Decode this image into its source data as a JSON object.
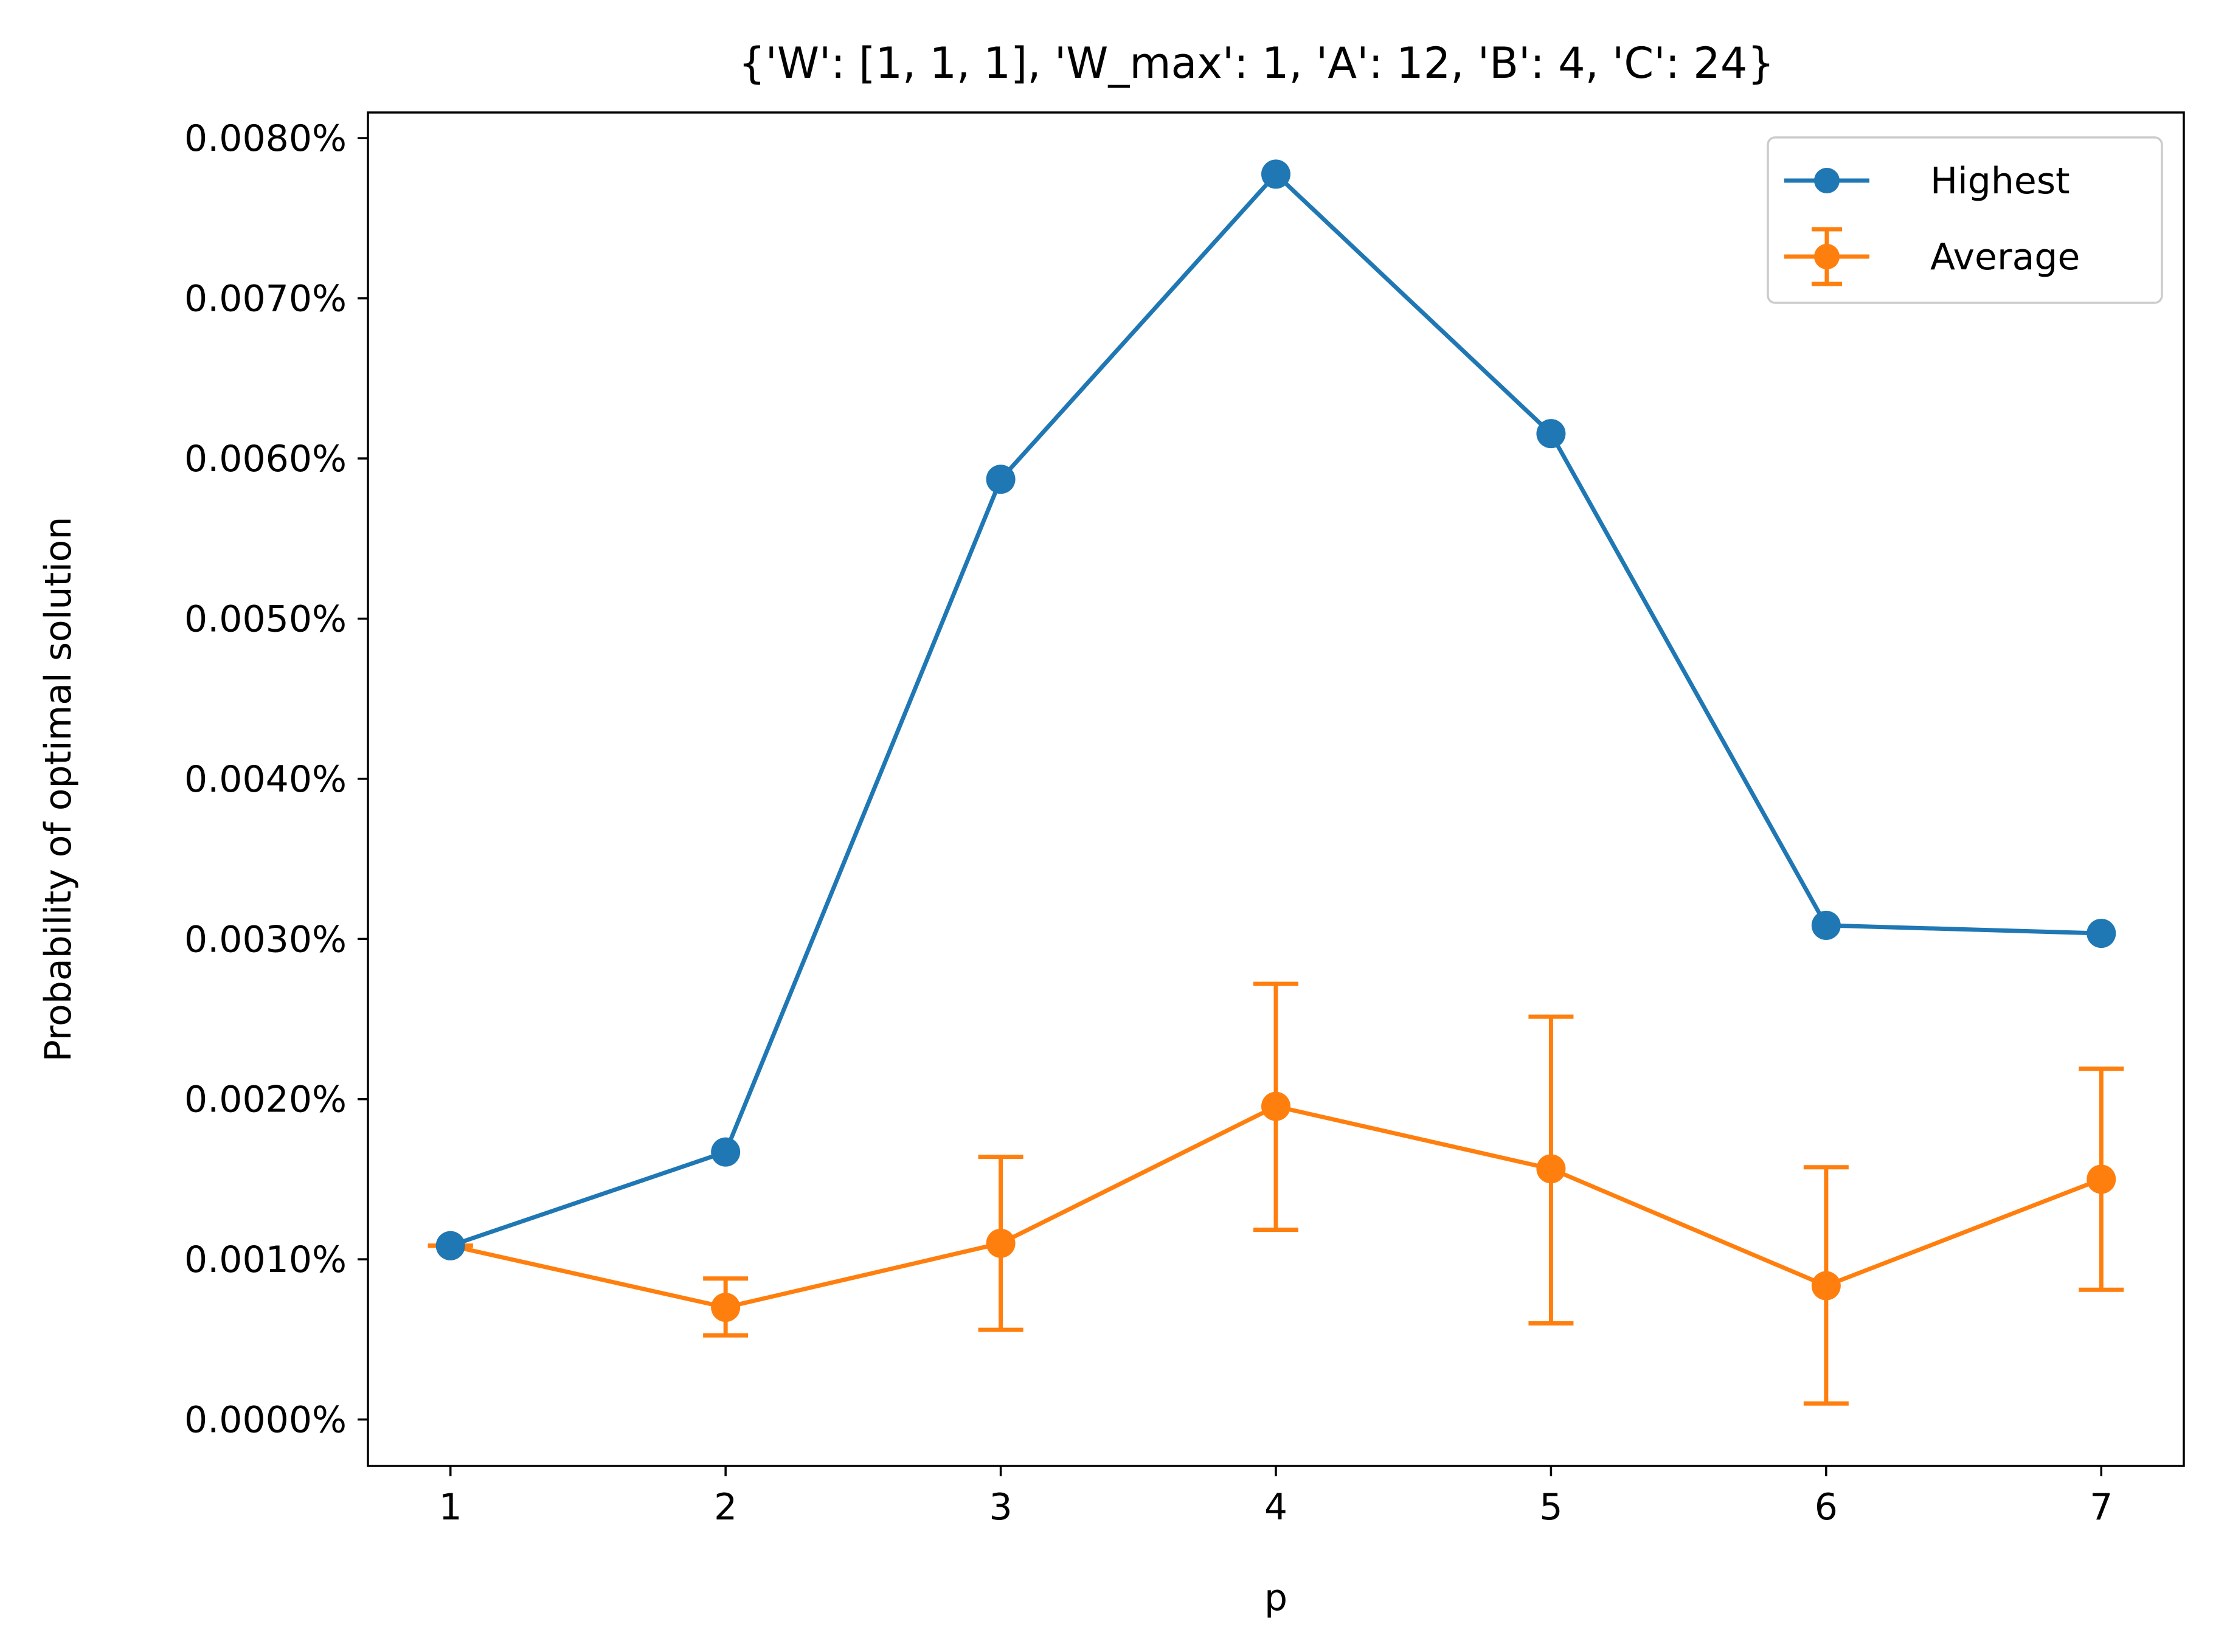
{
  "chart_data": {
    "type": "line",
    "title": "{'W': [1, 1, 1], 'W_max': 1, 'A': 12, 'B': 4, 'C': 24}",
    "xlabel": "p",
    "ylabel": "Probability of optimal solution",
    "x": [
      1,
      2,
      3,
      4,
      5,
      6,
      7
    ],
    "xlim": [
      0.7,
      7.3
    ],
    "ylim": [
      -0.00029,
      0.00816
    ],
    "y_ticks": [
      0.0,
      0.001,
      0.002,
      0.003,
      0.004,
      0.005,
      0.006,
      0.007,
      0.008
    ],
    "y_tick_labels": [
      "0.0000%",
      "0.0010%",
      "0.0020%",
      "0.0030%",
      "0.0040%",
      "0.0050%",
      "0.0060%",
      "0.0070%",
      "0.0080%"
    ],
    "x_ticks": [
      1,
      2,
      3,
      4,
      5,
      6,
      7
    ],
    "x_tick_labels": [
      "1",
      "2",
      "3",
      "4",
      "5",
      "6",
      "7"
    ],
    "grid": false,
    "legend_position": "top-right",
    "series": [
      {
        "name": "Highest",
        "color": "#1f77b4",
        "marker": "circle",
        "values": [
          0.001085,
          0.00167,
          0.00587,
          0.007775,
          0.006155,
          0.003085,
          0.003035
        ]
      },
      {
        "name": "Average",
        "color": "#ff7f0e",
        "marker": "circle",
        "error_bars": true,
        "values": [
          0.001085,
          0.0007,
          0.0011,
          0.001955,
          0.001565,
          0.000835,
          0.0015
        ],
        "err_low": [
          0.001085,
          0.000525,
          0.00056,
          0.001185,
          0.0006,
          0.0001,
          0.00081
        ],
        "err_high": [
          0.001085,
          0.00088,
          0.00164,
          0.00272,
          0.002515,
          0.001575,
          0.00219
        ]
      }
    ]
  }
}
